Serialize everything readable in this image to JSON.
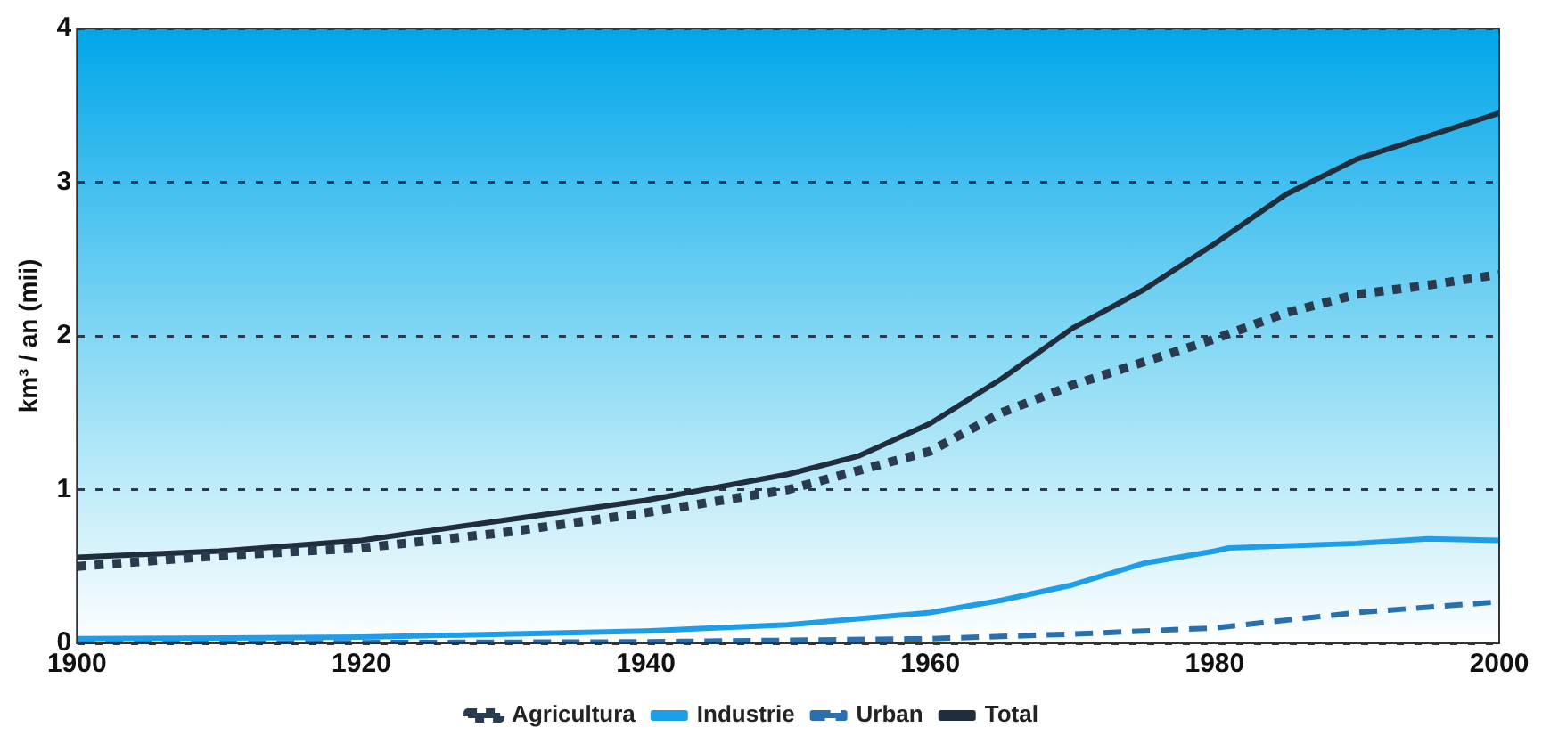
{
  "chart_data": {
    "type": "line",
    "ylabel": "km³ / an (mii)",
    "xlim": [
      1900,
      2000
    ],
    "xticks": [
      1900,
      1920,
      1940,
      1960,
      1980,
      2000
    ],
    "ylim": [
      0,
      4
    ],
    "yticks": [
      0,
      1,
      2,
      3,
      4
    ],
    "grid": "y",
    "legend": "bottom",
    "marker": "none",
    "series": [
      {
        "name": "Agricultura",
        "color": "#2a3a4f",
        "line_style": "dotted",
        "x": [
          1900,
          1910,
          1920,
          1930,
          1940,
          1950,
          1960,
          1965,
          1970,
          1975,
          1980,
          1985,
          1990,
          1995,
          2000
        ],
        "values": [
          0.5,
          0.57,
          0.62,
          0.72,
          0.85,
          1.0,
          1.25,
          1.5,
          1.68,
          1.83,
          1.98,
          2.15,
          2.27,
          2.33,
          2.4
        ]
      },
      {
        "name": "Industrie",
        "color": "#1e9ee8",
        "line_style": "solid",
        "x": [
          1900,
          1920,
          1940,
          1950,
          1960,
          1965,
          1970,
          1975,
          1980,
          1981,
          1990,
          1995,
          2000
        ],
        "values": [
          0.03,
          0.04,
          0.08,
          0.12,
          0.2,
          0.28,
          0.38,
          0.52,
          0.6,
          0.62,
          0.65,
          0.68,
          0.67
        ]
      },
      {
        "name": "Urban",
        "color": "#2a6fb0",
        "line_style": "dashed",
        "x": [
          1900,
          1940,
          1960,
          1970,
          1980,
          1990,
          2000
        ],
        "values": [
          0.0,
          0.01,
          0.03,
          0.06,
          0.1,
          0.2,
          0.27
        ]
      },
      {
        "name": "Total",
        "color": "#1f2d3d",
        "line_style": "solid",
        "x": [
          1900,
          1910,
          1920,
          1930,
          1940,
          1950,
          1955,
          1960,
          1965,
          1970,
          1975,
          1980,
          1985,
          1990,
          1995,
          2000
        ],
        "values": [
          0.56,
          0.6,
          0.67,
          0.8,
          0.93,
          1.1,
          1.22,
          1.43,
          1.72,
          2.05,
          2.3,
          2.6,
          2.92,
          3.15,
          3.3,
          3.45
        ]
      }
    ]
  }
}
